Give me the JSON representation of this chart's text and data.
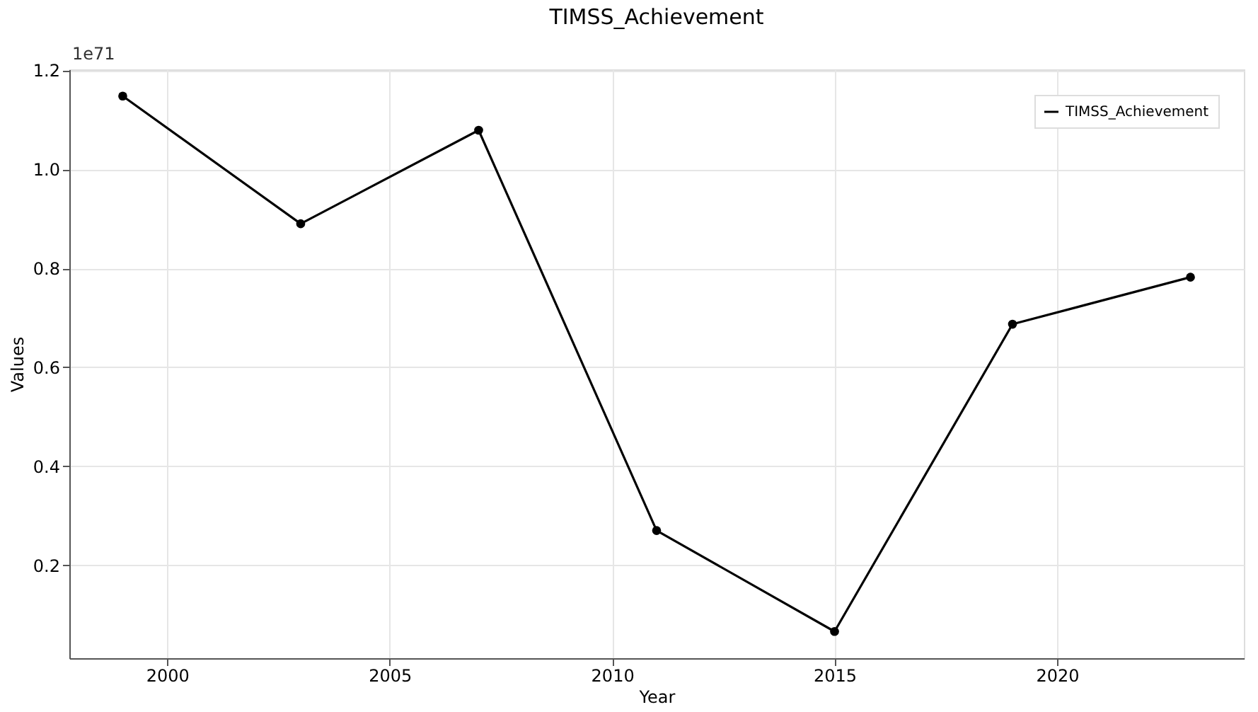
{
  "chart_data": {
    "type": "line",
    "title": "TIMSS_Achievement",
    "xlabel": "Year",
    "ylabel": "Values",
    "annotations": [
      "1e71"
    ],
    "x": [
      1999,
      2003,
      2007,
      2011,
      2015,
      2019,
      2023
    ],
    "series": [
      {
        "name": "TIMSS_Achievement",
        "color": "#000000",
        "values": [
          1.148,
          0.89,
          1.079,
          0.27,
          0.066,
          0.687,
          0.782
        ]
      }
    ],
    "xlim": [
      1997.8,
      2024.2
    ],
    "xticks": [
      2000,
      2005,
      2010,
      2015,
      2020
    ],
    "ylim": [
      0.012,
      1.202
    ],
    "yticks": [
      0.2,
      0.4,
      0.6,
      0.8,
      {
        "value": 1,
        "label": "1.0"
      },
      1.2
    ],
    "grid": true,
    "legend": "top right",
    "marker": "circle",
    "line_style": "solid"
  }
}
